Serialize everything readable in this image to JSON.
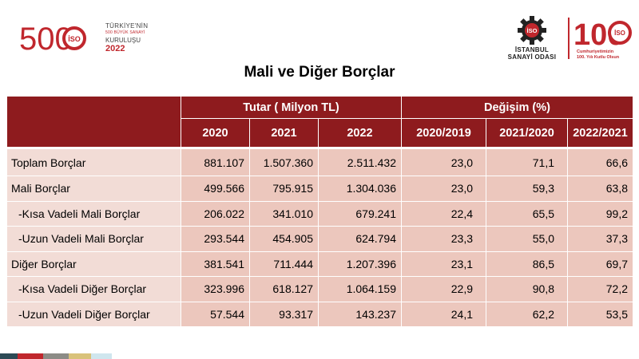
{
  "header": {
    "left_logo": {
      "number": "500",
      "line1": "TÜRKİYE'NİN",
      "line2": "500 BÜYÜK SANAYİ",
      "line3": "KURULUŞU",
      "year": "2022",
      "badge": "İSO"
    },
    "iso_logo": {
      "badge": "İSO",
      "name_line1": "İSTANBUL",
      "name_line2": "SANAYİ ODASI"
    },
    "centennial_logo": {
      "number": "100",
      "badge": "İSO",
      "tagline1": "Cumhuriyetimizin",
      "tagline2": "100. Yılı Kutlu Olsun"
    }
  },
  "title": "Mali ve Diğer Borçlar",
  "table": {
    "group_amount": "Tutar ( Milyon TL)",
    "group_change": "Değişim (%)",
    "columns": [
      "2020",
      "2021",
      "2022",
      "2020/2019",
      "2021/2020",
      "2022/2021"
    ],
    "rows": [
      {
        "label": "Toplam Borçlar",
        "values": [
          "881.107",
          "1.507.360",
          "2.511.432",
          "23,0",
          "71,1",
          "66,6"
        ]
      },
      {
        "label": "Mali Borçlar",
        "values": [
          "499.566",
          "795.915",
          "1.304.036",
          "23,0",
          "59,3",
          "63,8"
        ]
      },
      {
        "label": "-Kısa Vadeli Mali Borçlar",
        "values": [
          "206.022",
          "341.010",
          "679.241",
          "22,4",
          "65,5",
          "99,2"
        ]
      },
      {
        "label": "-Uzun Vadeli Mali Borçlar",
        "values": [
          "293.544",
          "454.905",
          "624.794",
          "23,3",
          "55,0",
          "37,3"
        ]
      },
      {
        "label": "Diğer Borçlar",
        "values": [
          "381.541",
          "711.444",
          "1.207.396",
          "23,1",
          "86,5",
          "69,7"
        ]
      },
      {
        "label": "-Kısa Vadeli Diğer Borçlar",
        "values": [
          "323.996",
          "618.127",
          "1.064.159",
          "22,9",
          "90,8",
          "72,2"
        ]
      },
      {
        "label": "-Uzun Vadeli Diğer Borçlar",
        "values": [
          "57.544",
          "93.317",
          "143.237",
          "24,1",
          "62,2",
          "53,5"
        ]
      }
    ]
  },
  "colors": {
    "header_bg": "#8e1b1e",
    "label_bg": "#f2dcd6",
    "value_bg": "#ecc7bd",
    "brand_red": "#c0272d",
    "strip": [
      "#2c4a55",
      "#c0272d",
      "#8c8c86",
      "#d9c27a",
      "#cfe6ee"
    ]
  }
}
